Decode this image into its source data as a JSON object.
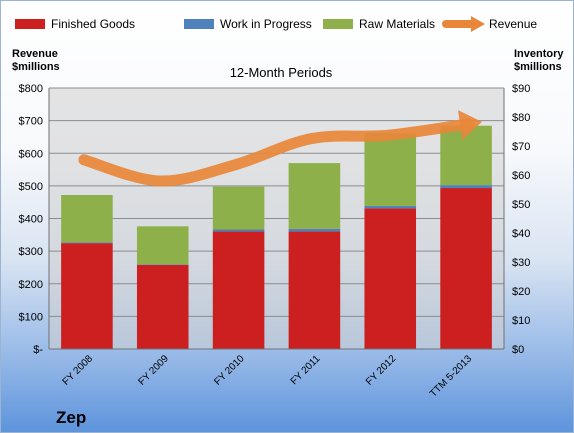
{
  "company": "Zep",
  "chart_data": {
    "type": "bar",
    "title": "12-Month Periods",
    "categories": [
      "FY 2008",
      "FY 2009",
      "FY 2010",
      "FY 2011",
      "FY 2012",
      "TTM 5-2013"
    ],
    "series": [
      {
        "name": "Finished Goods",
        "axis": "right",
        "values": [
          36.5,
          29.0,
          40.5,
          40.5,
          48.5,
          55.5
        ]
      },
      {
        "name": "Work in Progress",
        "axis": "right",
        "values": [
          0.3,
          0.2,
          0.7,
          0.9,
          0.8,
          1.0
        ]
      },
      {
        "name": "Raw Materials",
        "axis": "right",
        "values": [
          16.3,
          13.1,
          14.8,
          22.7,
          25.1,
          20.5
        ]
      },
      {
        "name": "Revenue",
        "type": "line",
        "axis": "left",
        "values": [
          580,
          515,
          565,
          645,
          655,
          690
        ]
      }
    ],
    "ylabel_left": "Revenue\n$millions",
    "ylabel_right": "Inventory\n$millions",
    "ylim_left": [
      0,
      800
    ],
    "ylim_right": [
      0,
      90
    ],
    "left_ticks": [
      "$-",
      "$100",
      "$200",
      "$300",
      "$400",
      "$500",
      "$600",
      "$700",
      "$800"
    ],
    "right_ticks": [
      "$0",
      "$10",
      "$20",
      "$30",
      "$40",
      "$50",
      "$60",
      "$70",
      "$80",
      "$90"
    ],
    "legend_position": "top",
    "grid": true,
    "colors": {
      "Finished Goods": "#cc1f1f",
      "Work in Progress": "#4f81bd",
      "Raw Materials": "#8db04a",
      "Revenue": "#e8873a"
    }
  }
}
